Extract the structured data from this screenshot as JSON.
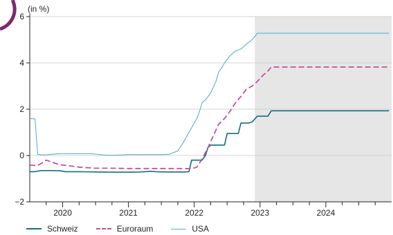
{
  "chart_data": {
    "type": "line",
    "unit_label": "(in %)",
    "ylim": [
      -2,
      6
    ],
    "yticks": [
      -2,
      0,
      2,
      4,
      6
    ],
    "xlim": [
      2019.5,
      2025.0
    ],
    "xtick_labels": [
      {
        "label": "2020",
        "x": 2020.0
      },
      {
        "label": "2021",
        "x": 2021.0
      },
      {
        "label": "2022",
        "x": 2022.0
      },
      {
        "label": "2023",
        "x": 2023.0
      },
      {
        "label": "2024",
        "x": 2024.0
      }
    ],
    "quarter_ticks": [
      2019.75,
      2020.0,
      2020.25,
      2020.5,
      2020.75,
      2021.0,
      2021.25,
      2021.5,
      2021.75,
      2022.0,
      2022.25,
      2022.5,
      2022.75,
      2023.0,
      2023.25,
      2023.5,
      2023.75,
      2024.0,
      2024.25,
      2024.5,
      2024.75
    ],
    "forecast_start": 2022.92,
    "grid": "horizontal",
    "colors": {
      "Schweiz": "#0d6f86",
      "Euroraum": "#c24f9f",
      "USA": "#5aaed1",
      "forecast_band": "#e6e6e6"
    },
    "series": [
      {
        "name": "Schweiz",
        "style": "solid",
        "points": [
          [
            2019.5,
            -0.7
          ],
          [
            2019.58,
            -0.7
          ],
          [
            2019.67,
            -0.65
          ],
          [
            2019.83,
            -0.65
          ],
          [
            2019.96,
            -0.66
          ],
          [
            2020.04,
            -0.7
          ],
          [
            2020.25,
            -0.7
          ],
          [
            2020.5,
            -0.71
          ],
          [
            2020.75,
            -0.72
          ],
          [
            2021.0,
            -0.72
          ],
          [
            2021.17,
            -0.71
          ],
          [
            2021.25,
            -0.7
          ],
          [
            2021.33,
            -0.68
          ],
          [
            2021.42,
            -0.7
          ],
          [
            2021.58,
            -0.71
          ],
          [
            2021.83,
            -0.71
          ],
          [
            2021.92,
            -0.7
          ],
          [
            2021.96,
            -0.2
          ],
          [
            2022.12,
            -0.2
          ],
          [
            2022.17,
            0.0
          ],
          [
            2022.21,
            0.35
          ],
          [
            2022.25,
            0.45
          ],
          [
            2022.37,
            0.45
          ],
          [
            2022.46,
            0.45
          ],
          [
            2022.5,
            0.95
          ],
          [
            2022.62,
            0.95
          ],
          [
            2022.67,
            0.95
          ],
          [
            2022.71,
            1.4
          ],
          [
            2022.83,
            1.4
          ],
          [
            2022.88,
            1.45
          ],
          [
            2022.96,
            1.7
          ],
          [
            2023.08,
            1.7
          ],
          [
            2023.12,
            1.7
          ],
          [
            2023.17,
            1.93
          ],
          [
            2023.5,
            1.93
          ],
          [
            2024.0,
            1.93
          ],
          [
            2024.5,
            1.93
          ],
          [
            2024.96,
            1.93
          ]
        ]
      },
      {
        "name": "Euroraum",
        "style": "dashed",
        "points": [
          [
            2019.5,
            -0.42
          ],
          [
            2019.62,
            -0.43
          ],
          [
            2019.67,
            -0.35
          ],
          [
            2019.75,
            -0.2
          ],
          [
            2019.83,
            -0.28
          ],
          [
            2019.96,
            -0.4
          ],
          [
            2020.12,
            -0.45
          ],
          [
            2020.25,
            -0.5
          ],
          [
            2020.5,
            -0.55
          ],
          [
            2020.75,
            -0.55
          ],
          [
            2021.0,
            -0.56
          ],
          [
            2021.25,
            -0.56
          ],
          [
            2021.5,
            -0.56
          ],
          [
            2021.75,
            -0.56
          ],
          [
            2021.96,
            -0.57
          ],
          [
            2022.04,
            -0.5
          ],
          [
            2022.12,
            -0.15
          ],
          [
            2022.21,
            0.35
          ],
          [
            2022.29,
            0.85
          ],
          [
            2022.37,
            1.35
          ],
          [
            2022.46,
            1.6
          ],
          [
            2022.54,
            1.9
          ],
          [
            2022.62,
            2.25
          ],
          [
            2022.71,
            2.55
          ],
          [
            2022.79,
            2.85
          ],
          [
            2022.88,
            3.0
          ],
          [
            2022.96,
            3.2
          ],
          [
            2023.04,
            3.45
          ],
          [
            2023.12,
            3.65
          ],
          [
            2023.17,
            3.82
          ],
          [
            2023.5,
            3.82
          ],
          [
            2024.0,
            3.82
          ],
          [
            2024.5,
            3.82
          ],
          [
            2024.96,
            3.82
          ]
        ]
      },
      {
        "name": "USA",
        "style": "thin",
        "points": [
          [
            2019.5,
            1.6
          ],
          [
            2019.58,
            1.58
          ],
          [
            2019.62,
            0.05
          ],
          [
            2019.67,
            0.03
          ],
          [
            2019.75,
            0.03
          ],
          [
            2019.83,
            0.05
          ],
          [
            2019.96,
            0.08
          ],
          [
            2020.12,
            0.08
          ],
          [
            2020.25,
            0.08
          ],
          [
            2020.42,
            0.08
          ],
          [
            2020.5,
            0.06
          ],
          [
            2020.62,
            0.02
          ],
          [
            2020.75,
            0.01
          ],
          [
            2020.88,
            0.02
          ],
          [
            2021.0,
            0.04
          ],
          [
            2021.12,
            0.04
          ],
          [
            2021.25,
            0.04
          ],
          [
            2021.5,
            0.04
          ],
          [
            2021.62,
            0.05
          ],
          [
            2021.75,
            0.2
          ],
          [
            2021.83,
            0.55
          ],
          [
            2021.92,
            1.0
          ],
          [
            2021.96,
            1.2
          ],
          [
            2022.04,
            1.6
          ],
          [
            2022.08,
            1.9
          ],
          [
            2022.12,
            2.28
          ],
          [
            2022.17,
            2.4
          ],
          [
            2022.25,
            2.7
          ],
          [
            2022.33,
            3.2
          ],
          [
            2022.37,
            3.6
          ],
          [
            2022.42,
            3.8
          ],
          [
            2022.46,
            4.0
          ],
          [
            2022.54,
            4.3
          ],
          [
            2022.62,
            4.5
          ],
          [
            2022.71,
            4.6
          ],
          [
            2022.79,
            4.8
          ],
          [
            2022.88,
            5.0
          ],
          [
            2022.96,
            5.28
          ],
          [
            2023.25,
            5.28
          ],
          [
            2023.5,
            5.28
          ],
          [
            2024.0,
            5.28
          ],
          [
            2024.5,
            5.28
          ],
          [
            2024.96,
            5.28
          ]
        ]
      }
    ],
    "legend": [
      {
        "name": "Schweiz",
        "style": "solid"
      },
      {
        "name": "Euroraum",
        "style": "dashed"
      },
      {
        "name": "USA",
        "style": "thin"
      }
    ]
  }
}
